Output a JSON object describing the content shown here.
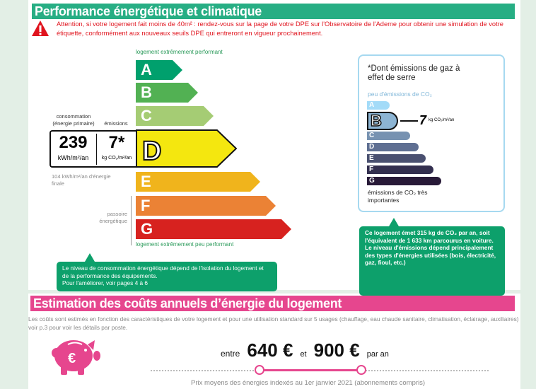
{
  "performance": {
    "title": "Performance énergétique et climatique",
    "warning": "Attention, si votre logement fait moins de 40m² : rendez-vous sur la page de votre DPE sur l'Observatoire de l'Ademe pour obtenir une simulation de votre étiquette, conformément aux nouveaux seuils DPE qui entreront en vigueur prochainement.",
    "top_label": "logement extrêmement performant",
    "bottom_label": "logement extrêmement peu performant",
    "classes": [
      {
        "letter": "A",
        "color": "#00a06d"
      },
      {
        "letter": "B",
        "color": "#52b153"
      },
      {
        "letter": "C",
        "color": "#a5cc74"
      },
      {
        "letter": "D",
        "color": "#f4e70f"
      },
      {
        "letter": "E",
        "color": "#f0b41c"
      },
      {
        "letter": "F",
        "color": "#eb8235"
      },
      {
        "letter": "G",
        "color": "#d7221f"
      }
    ],
    "current_class": "D",
    "consumption_label": "consommation (énergie primaire)",
    "emissions_label": "émissions",
    "consumption_value": "239",
    "consumption_unit": "kWh/m²/an",
    "emissions_value": "7*",
    "emissions_unit": "kg CO₂/m²/an",
    "final_energy": "104 kWh/m²/an d'énergie finale",
    "passoire": "passoire énergétique",
    "bubble": "Le niveau de consommation énergétique dépend de l'isolation du logement et de la performance des équipements.\nPour l'améliorer, voir pages 4 à 6"
  },
  "ges": {
    "title": "*Dont émissions de gaz à effet de serre",
    "top_label": "peu d'émissions de CO₂",
    "bottom_label": "émissions de CO₂ très importantes",
    "classes": [
      {
        "letter": "A",
        "color": "#a3dbf8"
      },
      {
        "letter": "B",
        "color": "#8cb4d3"
      },
      {
        "letter": "C",
        "color": "#7792b1"
      },
      {
        "letter": "D",
        "color": "#5f6f92"
      },
      {
        "letter": "E",
        "color": "#4a5070"
      },
      {
        "letter": "F",
        "color": "#332f4f"
      },
      {
        "letter": "G",
        "color": "#281a38"
      }
    ],
    "current_class": "B",
    "value": "7",
    "unit": "kg CO₂/m²/an",
    "bubble": "Ce logement émet 315 kg de CO₂ par an, soit l'équivalent de 1 633 km parcourus en voiture.\nLe niveau d'émissions dépend principalement des types d'énergies utilisées (bois, électricité, gaz, fioul, etc.)"
  },
  "costs": {
    "title": "Estimation des coûts annuels d’énergie du logement",
    "description": "Les coûts sont estimés en fonction des caractéristiques de votre logement et pour une utilisation standard sur 5 usages (chauffage, eau chaude sanitaire, climatisation, éclairage, auxiliaires) voir p.3 pour voir les détails par poste.",
    "between": "entre",
    "min": "640 €",
    "and": "et",
    "max": "900 €",
    "per_year": "par an",
    "note": "Prix moyens des énergies indexés au  1er janvier 2021 (abonnements compris)",
    "accent": "#e6468e"
  }
}
